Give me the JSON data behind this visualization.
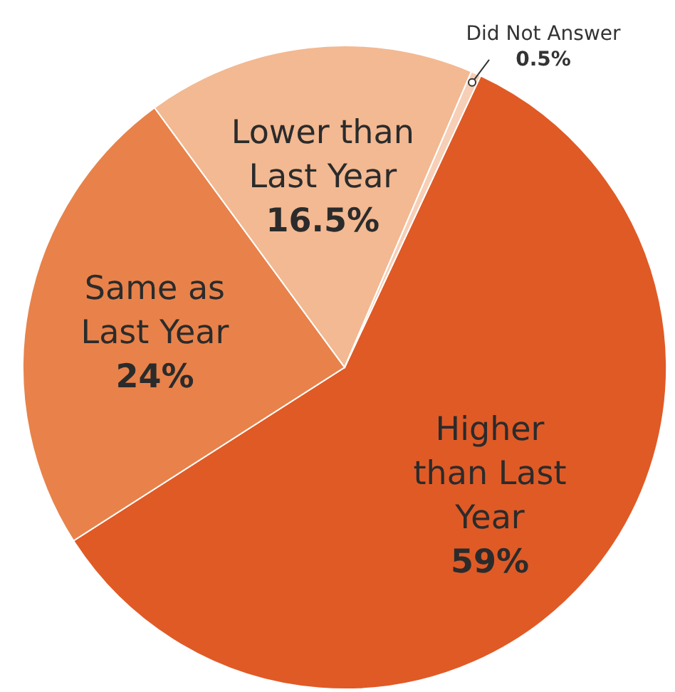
{
  "chart_data": {
    "type": "pie",
    "categories": [
      "Higher than Last Year",
      "Same as Last Year",
      "Lower than Last Year",
      "Did Not Answer"
    ],
    "values": [
      59,
      24,
      16.5,
      0.5
    ],
    "value_labels": [
      "59%",
      "24%",
      "16.5%",
      "0.5%"
    ],
    "colors": [
      "#e05a26",
      "#e8824a",
      "#f2b992",
      "#f6cfb6"
    ]
  }
}
